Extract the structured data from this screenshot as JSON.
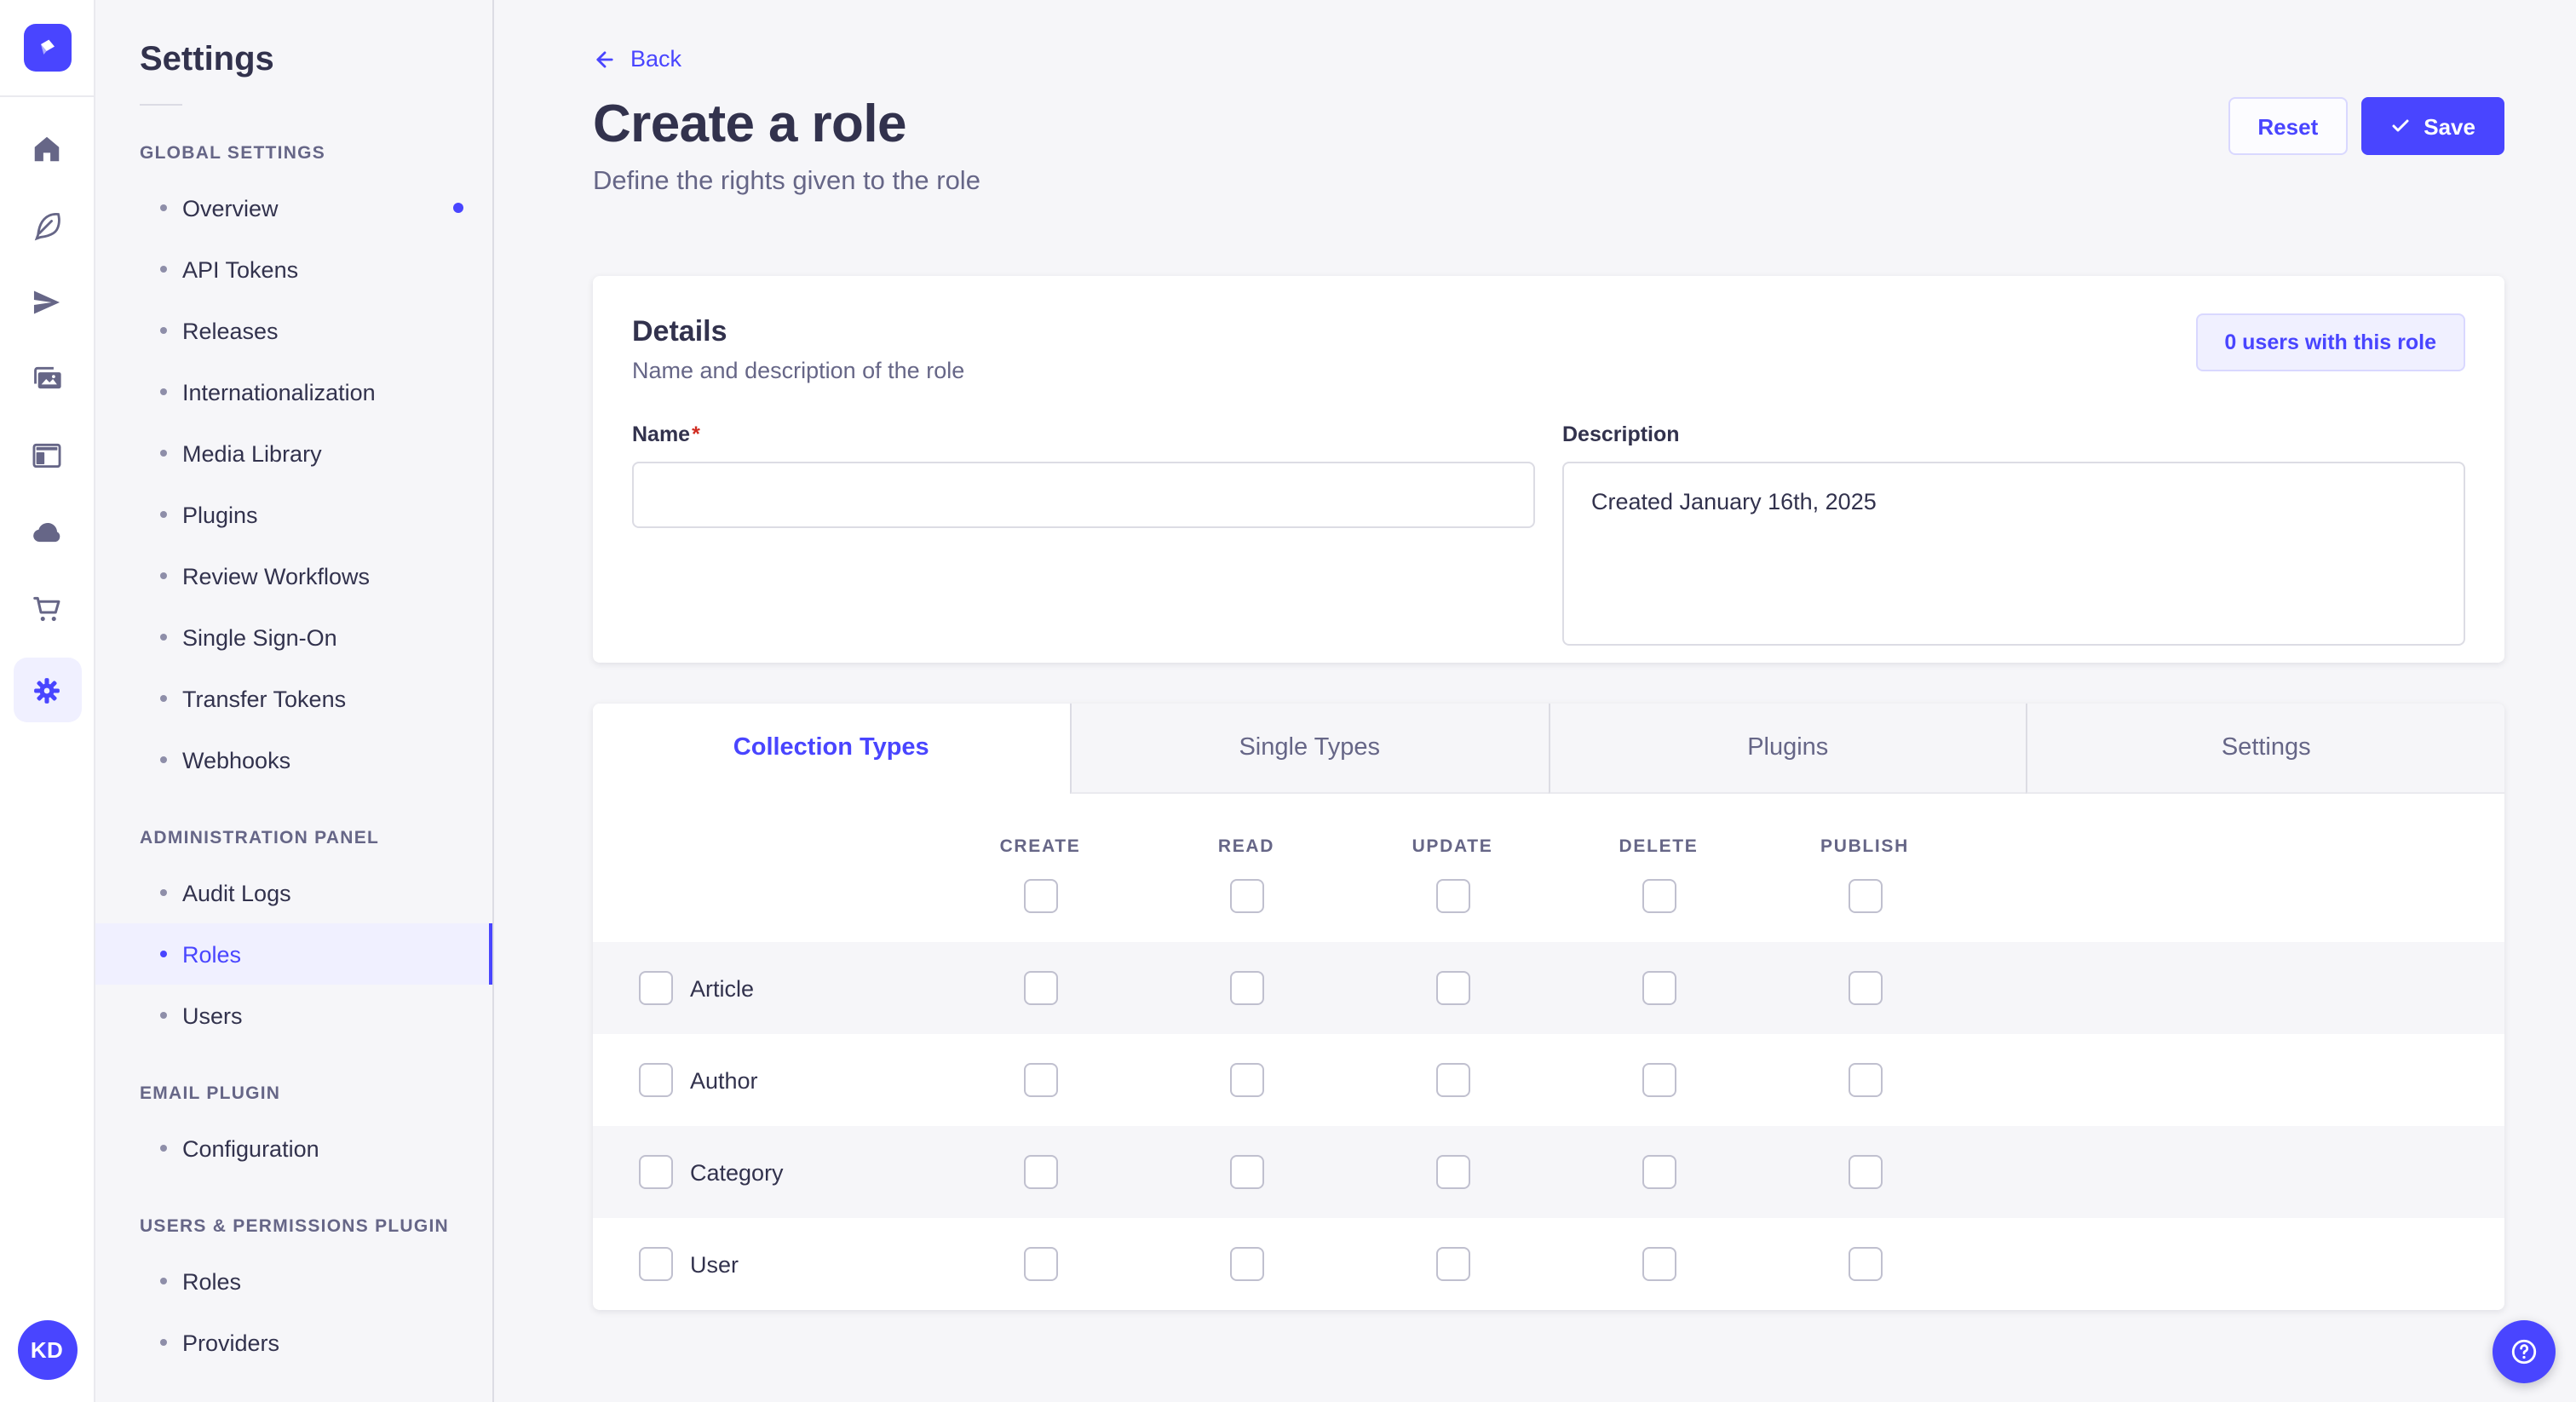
{
  "colors": {
    "accent": "#4945FF",
    "accent_light": "#F0F0FF",
    "accent_border": "#D9D8FF",
    "page_bg": "#F6F6F9",
    "card_bg": "#FFFFFF",
    "text_dark": "#32324D",
    "text_gray": "#666687",
    "border": "#DCDCE4",
    "required_red": "#D02B20"
  },
  "rail": {
    "logo": "strapi-logo",
    "icons": [
      {
        "icon": "home",
        "active": false
      },
      {
        "icon": "feather",
        "active": false
      },
      {
        "icon": "paper-plane",
        "active": false
      },
      {
        "icon": "media-library",
        "active": false
      },
      {
        "icon": "layout",
        "active": false
      },
      {
        "icon": "cloud",
        "active": false
      },
      {
        "icon": "cart",
        "active": false
      },
      {
        "icon": "gear",
        "active": true
      }
    ],
    "avatar_initials": "KD"
  },
  "sidebar": {
    "title": "Settings",
    "sections": [
      {
        "header": "GLOBAL SETTINGS",
        "items": [
          {
            "label": "Overview",
            "active": false,
            "notification": true
          },
          {
            "label": "API Tokens",
            "active": false
          },
          {
            "label": "Releases",
            "active": false
          },
          {
            "label": "Internationalization",
            "active": false
          },
          {
            "label": "Media Library",
            "active": false
          },
          {
            "label": "Plugins",
            "active": false
          },
          {
            "label": "Review Workflows",
            "active": false
          },
          {
            "label": "Single Sign-On",
            "active": false
          },
          {
            "label": "Transfer Tokens",
            "active": false
          },
          {
            "label": "Webhooks",
            "active": false
          }
        ]
      },
      {
        "header": "ADMINISTRATION PANEL",
        "items": [
          {
            "label": "Audit Logs",
            "active": false
          },
          {
            "label": "Roles",
            "active": true
          },
          {
            "label": "Users",
            "active": false
          }
        ]
      },
      {
        "header": "EMAIL PLUGIN",
        "items": [
          {
            "label": "Configuration",
            "active": false
          }
        ]
      },
      {
        "header": "USERS & PERMISSIONS PLUGIN",
        "items": [
          {
            "label": "Roles",
            "active": false
          },
          {
            "label": "Providers",
            "active": false
          }
        ]
      }
    ]
  },
  "header": {
    "back": "Back",
    "title": "Create a role",
    "subtitle": "Define the rights given to the role",
    "reset_label": "Reset",
    "save_label": "Save"
  },
  "details": {
    "title": "Details",
    "subtitle": "Name and description of the role",
    "users_badge": "0 users with this role",
    "name_label": "Name",
    "required_marker": "*",
    "name_value": "",
    "description_label": "Description",
    "description_value": "Created January 16th, 2025"
  },
  "permissions": {
    "tabs": [
      {
        "label": "Collection Types",
        "active": true
      },
      {
        "label": "Single Types",
        "active": false
      },
      {
        "label": "Plugins",
        "active": false
      },
      {
        "label": "Settings",
        "active": false
      }
    ],
    "columns": [
      "CREATE",
      "READ",
      "UPDATE",
      "DELETE",
      "PUBLISH"
    ],
    "rows": [
      "Article",
      "Author",
      "Category",
      "User"
    ]
  }
}
